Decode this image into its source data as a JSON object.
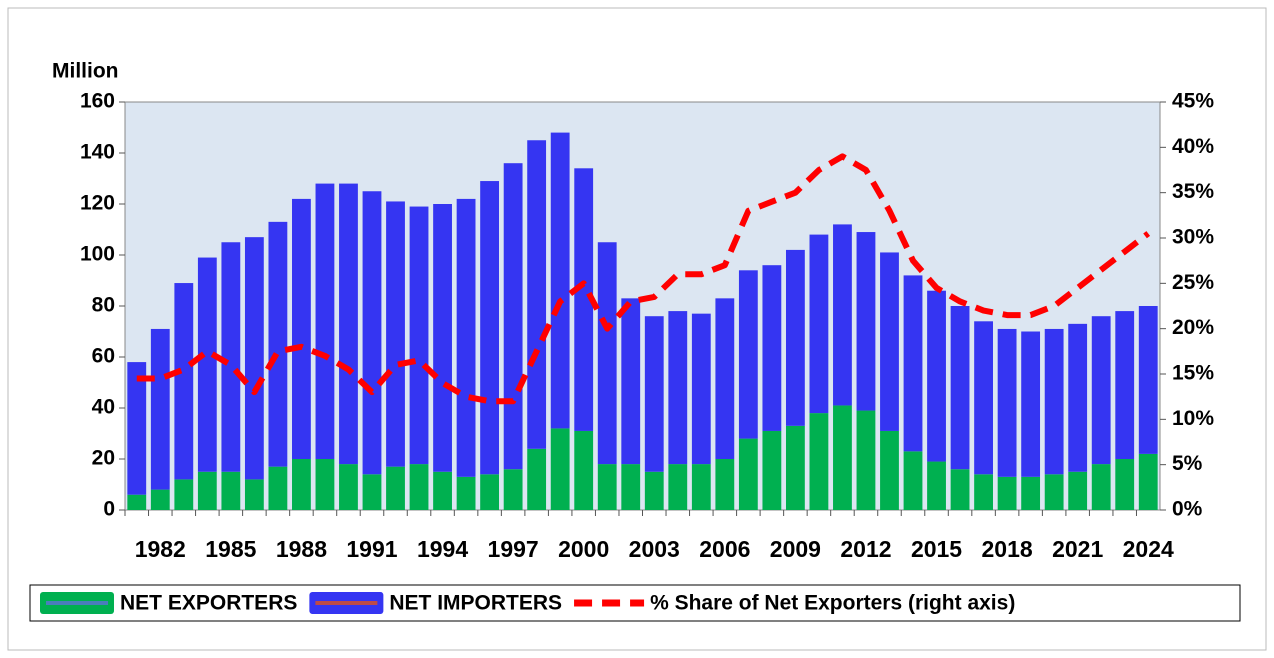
{
  "chart_data": {
    "type": "bar",
    "stacked": true,
    "ylabel": "Million",
    "categories": [
      "1982",
      null,
      null,
      "1985",
      null,
      null,
      "1988",
      null,
      null,
      "1991",
      null,
      null,
      "1994",
      null,
      null,
      "1997",
      null,
      null,
      "2000",
      null,
      null,
      "2003",
      null,
      null,
      "2006",
      null,
      null,
      "2009",
      null,
      null,
      "2012",
      null,
      null,
      "2015",
      null,
      null,
      "2018",
      null,
      null,
      "2021",
      null,
      null,
      "2024",
      null
    ],
    "series": [
      {
        "name": "NET EXPORTERS",
        "color": "#00b050",
        "values": [
          6,
          8,
          12,
          15,
          15,
          12,
          17,
          20,
          20,
          18,
          14,
          17,
          18,
          15,
          13,
          14,
          16,
          24,
          32,
          31,
          18,
          18,
          15,
          18,
          18,
          20,
          28,
          31,
          33,
          38,
          41,
          39,
          31,
          23,
          19,
          16,
          14,
          13,
          13,
          14,
          15,
          18,
          20,
          22
        ]
      },
      {
        "name": "NET IMPORTERS",
        "color": "#3535f2",
        "values": [
          52,
          63,
          77,
          84,
          90,
          95,
          96,
          102,
          108,
          110,
          111,
          104,
          101,
          105,
          109,
          115,
          120,
          121,
          116,
          103,
          87,
          65,
          61,
          60,
          59,
          63,
          66,
          65,
          69,
          70,
          71,
          70,
          70,
          69,
          67,
          64,
          60,
          58,
          57,
          57,
          58,
          58,
          58,
          58
        ]
      },
      {
        "name": "% Share of Net Exporters (right axis)",
        "color": "#ff0000",
        "type": "line",
        "axis": "y2",
        "values": [
          14.5,
          14.5,
          15.5,
          17.5,
          16,
          13,
          17.5,
          18,
          17,
          15.5,
          13,
          16,
          16.5,
          14,
          12.5,
          12,
          12,
          17.5,
          23,
          25,
          20,
          23,
          23.5,
          26,
          26,
          27,
          33,
          34,
          35,
          37.5,
          39,
          37.5,
          33,
          27.5,
          24.5,
          23,
          22,
          21.5,
          21.5,
          22.5,
          24.5,
          26.5,
          28.5,
          30.5
        ]
      }
    ],
    "ylim": [
      0,
      160
    ],
    "yticks": [
      0,
      20,
      40,
      60,
      80,
      100,
      120,
      140,
      160
    ],
    "y2lim": [
      0,
      45
    ],
    "y2ticks": [
      {
        "value": 0,
        "label": "0%"
      },
      {
        "value": 5,
        "label": "5%"
      },
      {
        "value": 10,
        "label": "10%"
      },
      {
        "value": 15,
        "label": "15%"
      },
      {
        "value": 20,
        "label": "20%"
      },
      {
        "value": 25,
        "label": "25%"
      },
      {
        "value": 30,
        "label": "30%"
      },
      {
        "value": 35,
        "label": "35%"
      },
      {
        "value": 40,
        "label": "40%"
      },
      {
        "value": 45,
        "label": "45%"
      }
    ],
    "plot_background": "#dce6f2",
    "legend": "bottom"
  }
}
